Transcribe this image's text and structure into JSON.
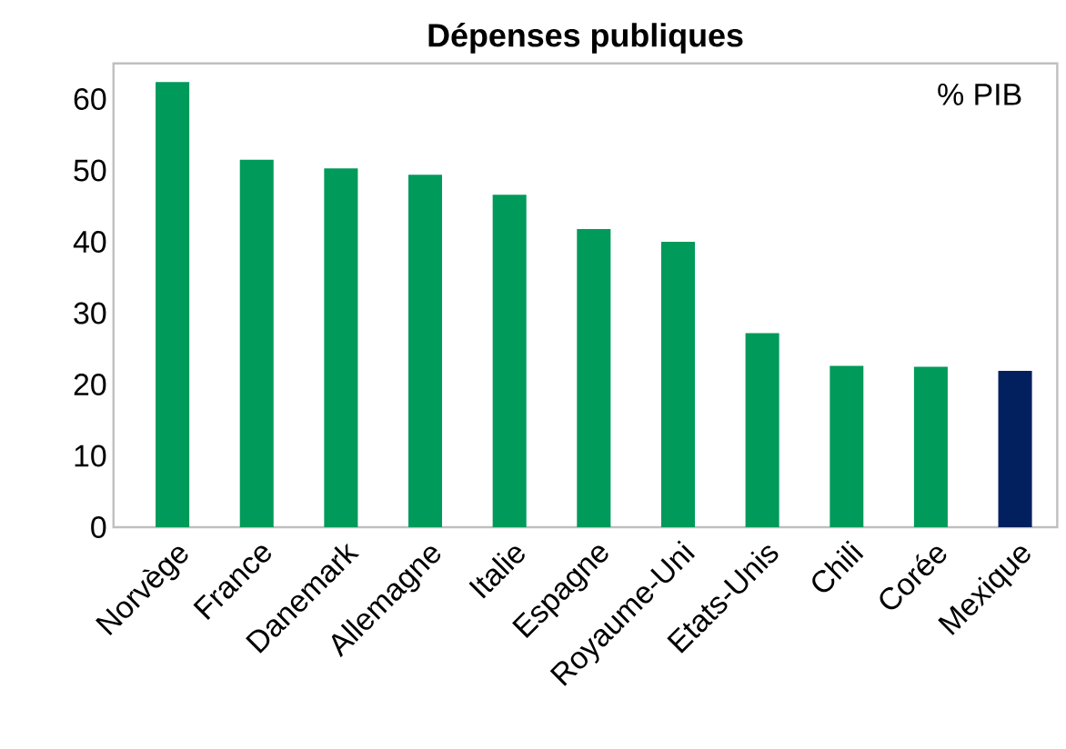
{
  "chart_data": {
    "type": "bar",
    "title": "Dépenses publiques",
    "categories": [
      "Norvège",
      "France",
      "Danemark",
      "Allemagne",
      "Italie",
      "Espagne",
      "Royaume-Uni",
      "Etats-Unis",
      "Chili",
      "Corée",
      "Mexique"
    ],
    "values": [
      62.4,
      51.5,
      50.3,
      49.4,
      46.6,
      41.8,
      40.0,
      27.2,
      22.6,
      22.5,
      21.9
    ],
    "colors": [
      "#009a5a",
      "#009a5a",
      "#009a5a",
      "#009a5a",
      "#009a5a",
      "#009a5a",
      "#009a5a",
      "#009a5a",
      "#009a5a",
      "#009a5a",
      "#02205e"
    ],
    "annotations": [
      "% PIB"
    ],
    "ylim": [
      0,
      65
    ],
    "yticks": [
      0,
      10,
      20,
      30,
      40,
      50,
      60
    ],
    "grid": false
  }
}
